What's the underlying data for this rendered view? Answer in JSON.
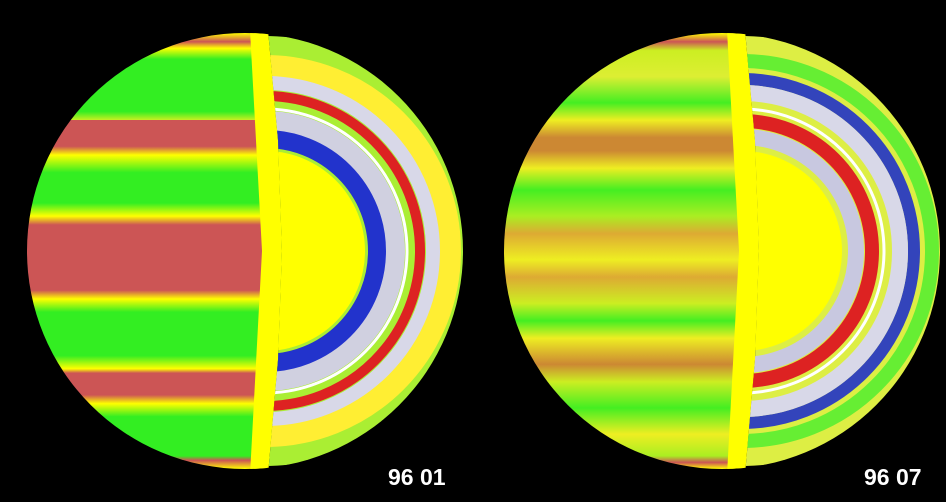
{
  "panels": [
    {
      "label": "96 01"
    },
    {
      "label": "96 07"
    }
  ]
}
